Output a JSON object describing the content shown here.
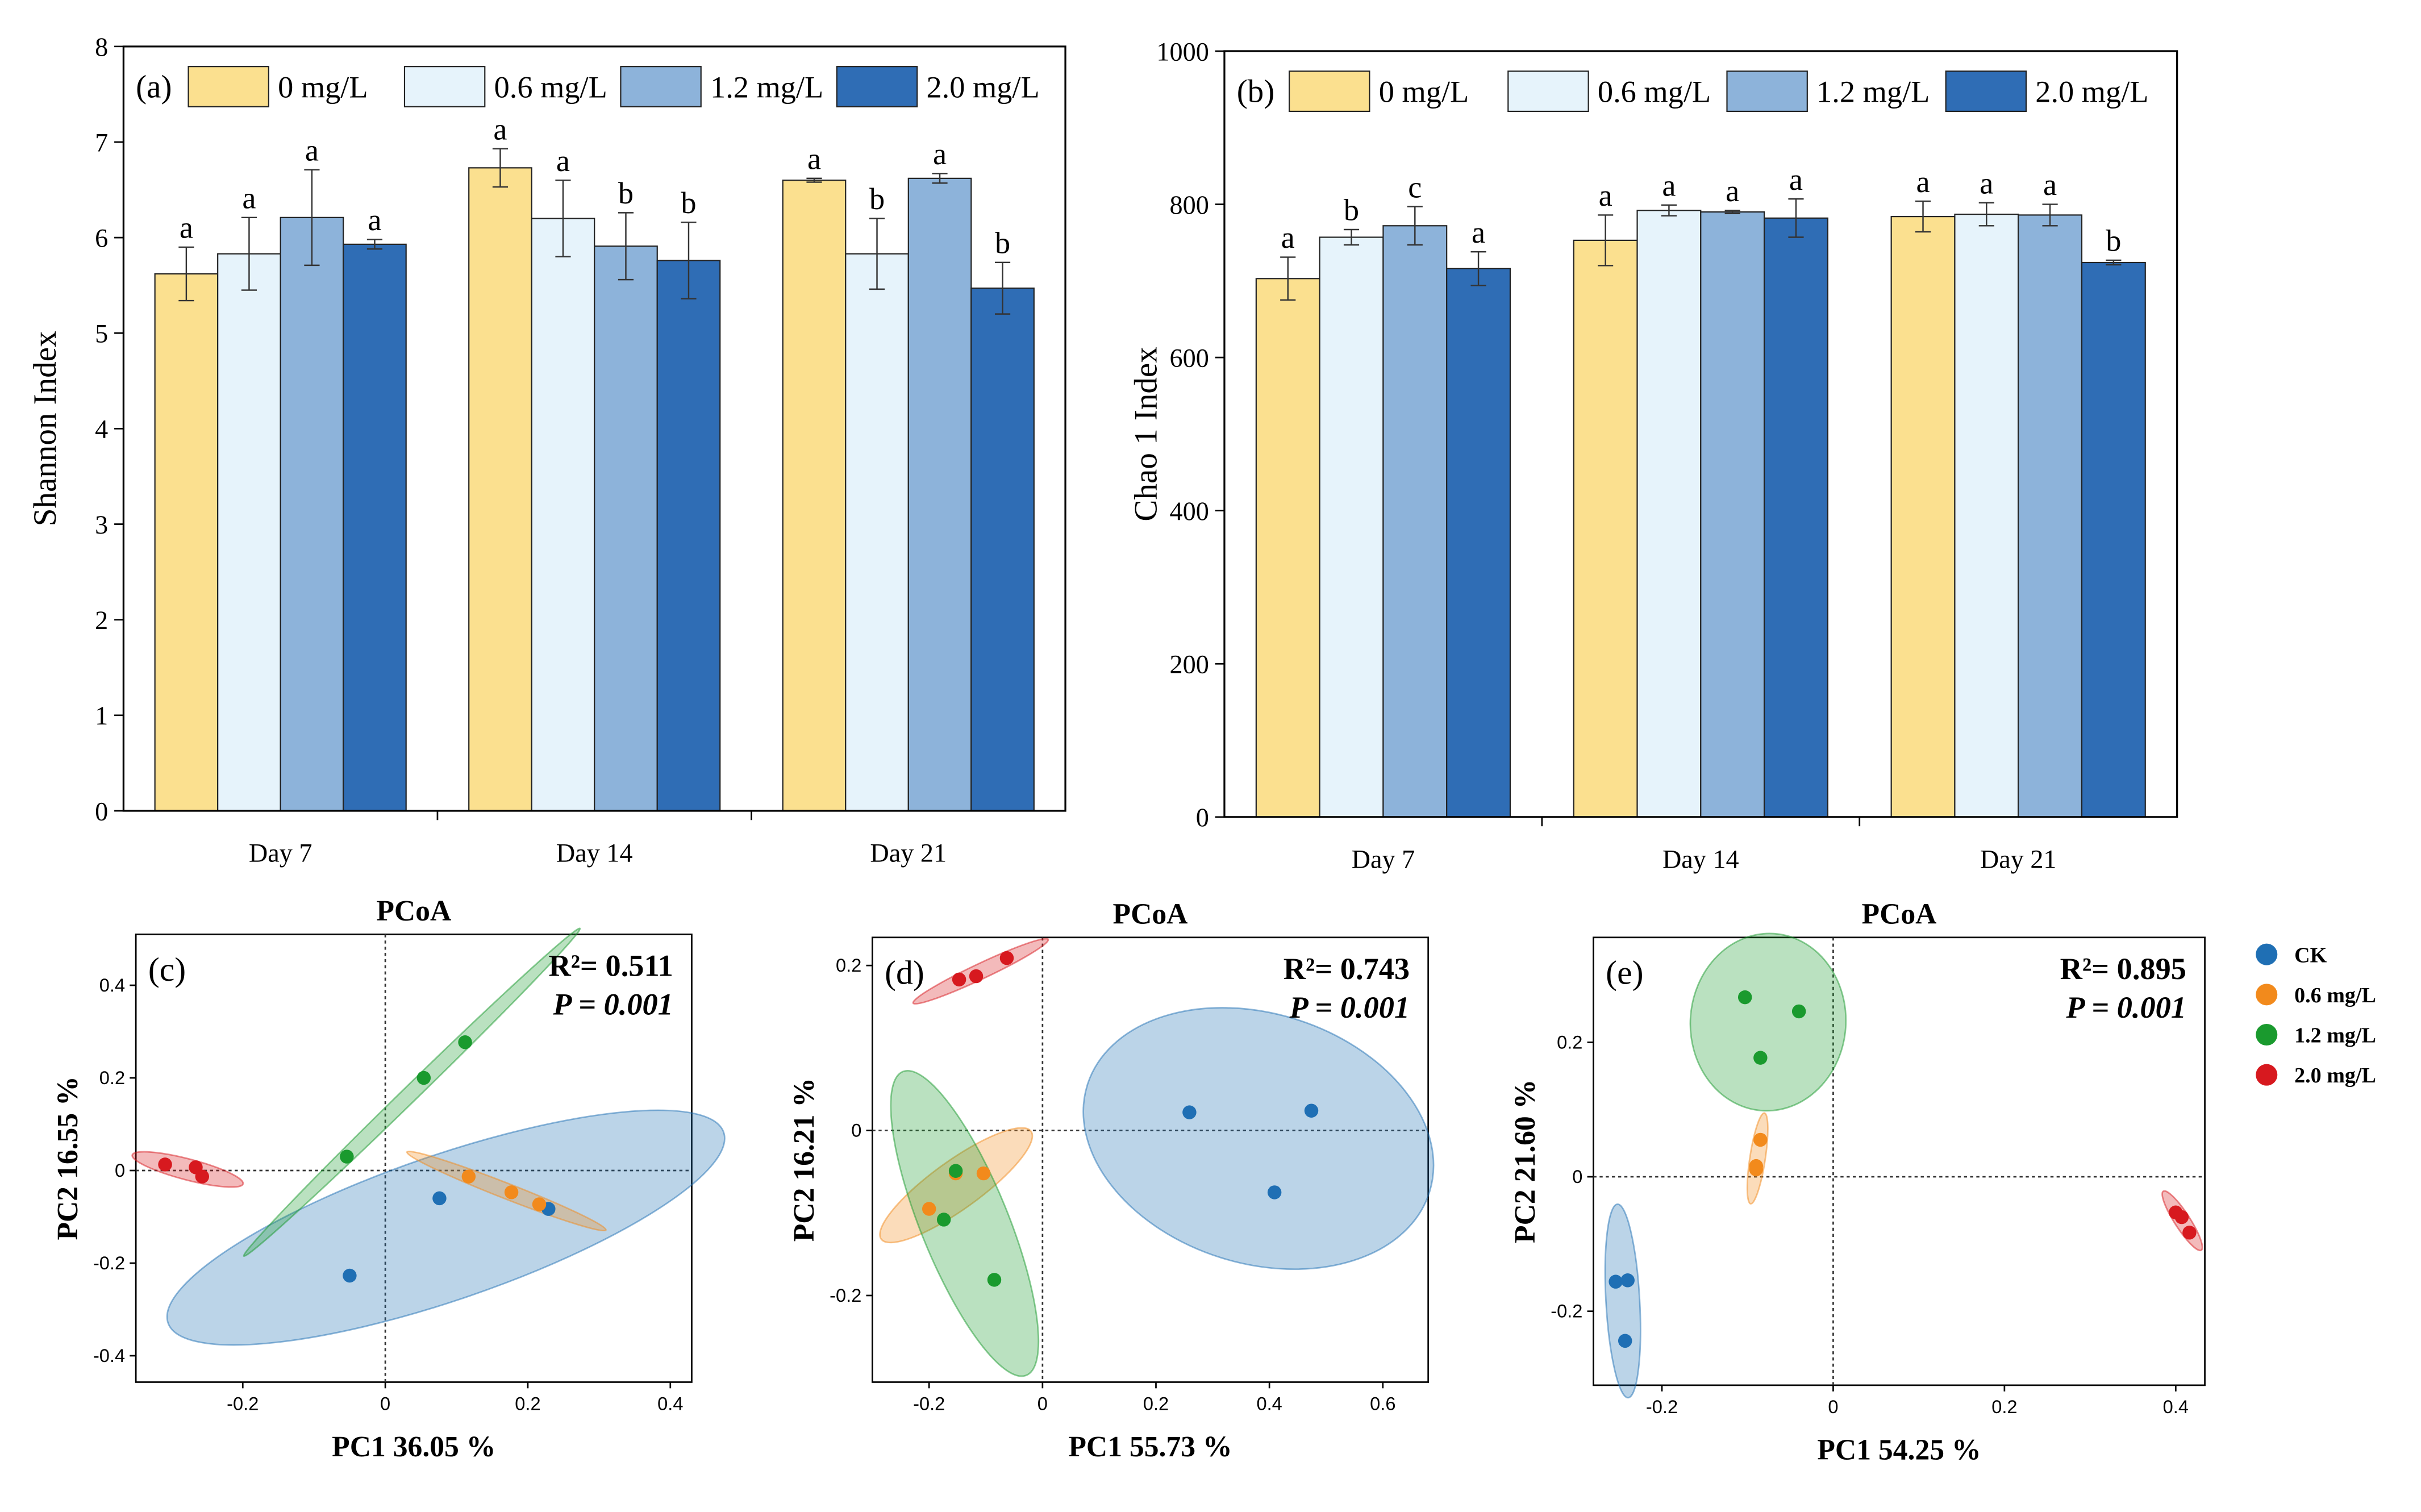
{
  "chart_data": [
    {
      "type": "bar",
      "panel_label": "(a)",
      "y_label": "Shannon Index",
      "categories": [
        "Day 7",
        "Day 14",
        "Day 21"
      ],
      "ylim": [
        0,
        8
      ],
      "yticks": [
        0,
        1,
        2,
        3,
        4,
        5,
        6,
        7,
        8
      ],
      "series": [
        {
          "name": "0 mg/L",
          "color": "#fbe08f",
          "values": [
            5.62,
            6.73,
            6.6
          ],
          "errors": [
            0.28,
            0.2,
            0.02
          ],
          "letters": [
            "a",
            "a",
            "a"
          ]
        },
        {
          "name": "0.6 mg/L",
          "color": "#e6f3fb",
          "values": [
            5.83,
            6.2,
            5.83
          ],
          "errors": [
            0.38,
            0.4,
            0.37
          ],
          "letters": [
            "a",
            "a",
            "b"
          ]
        },
        {
          "name": "1.2 mg/L",
          "color": "#8db3da",
          "values": [
            6.21,
            5.91,
            6.62
          ],
          "errors": [
            0.5,
            0.35,
            0.05
          ],
          "letters": [
            "a",
            "b",
            "a"
          ]
        },
        {
          "name": "2.0 mg/L",
          "color": "#2f6db5",
          "values": [
            5.93,
            5.76,
            5.47
          ],
          "errors": [
            0.05,
            0.4,
            0.27
          ],
          "letters": [
            "a",
            "b",
            "b"
          ]
        }
      ]
    },
    {
      "type": "bar",
      "panel_label": "(b)",
      "y_label": "Chao 1 Index",
      "categories": [
        "Day 7",
        "Day 14",
        "Day 21"
      ],
      "ylim": [
        0,
        1000
      ],
      "yticks": [
        0,
        200,
        400,
        600,
        800,
        1000
      ],
      "series": [
        {
          "name": "0 mg/L",
          "color": "#fbe08f",
          "values": [
            703,
            753,
            784
          ],
          "errors": [
            28,
            33,
            20
          ],
          "letters": [
            "a",
            "a",
            "a"
          ]
        },
        {
          "name": "0.6 mg/L",
          "color": "#e6f3fb",
          "values": [
            757,
            792,
            787
          ],
          "errors": [
            10,
            7,
            15
          ],
          "letters": [
            "b",
            "a",
            "a"
          ]
        },
        {
          "name": "1.2 mg/L",
          "color": "#8db3da",
          "values": [
            772,
            790,
            786
          ],
          "errors": [
            25,
            2,
            14
          ],
          "letters": [
            "c",
            "a",
            "a"
          ]
        },
        {
          "name": "2.0 mg/L",
          "color": "#2f6db5",
          "values": [
            716,
            782,
            724
          ],
          "errors": [
            22,
            25,
            3
          ],
          "letters": [
            "a",
            "a",
            "b"
          ]
        }
      ]
    },
    {
      "type": "scatter",
      "title": "PCoA",
      "panel_label": "(c)",
      "x_label": "PC1 36.05 %",
      "y_label": "PC2 16.55 %",
      "stat_r2": "R²= 0.511",
      "stat_p": "P = 0.001",
      "xlim": [
        -0.35,
        0.43
      ],
      "xticks": [
        -0.2,
        0,
        0.2,
        0.4
      ],
      "ylim": [
        -0.457,
        0.51
      ],
      "yticks": [
        -0.4,
        -0.2,
        0,
        0.2,
        0.4
      ],
      "series": [
        {
          "color": "#1f6fb4",
          "x": [
            0.076,
            -0.05,
            0.229
          ],
          "y": [
            -0.06,
            -0.227,
            -0.083
          ]
        },
        {
          "color": "#f28a1c",
          "x": [
            0.117,
            0.177,
            0.216
          ],
          "y": [
            -0.013,
            -0.047,
            -0.073
          ]
        },
        {
          "color": "#1a9a2e",
          "x": [
            -0.054,
            0.054,
            0.112
          ],
          "y": [
            0.03,
            0.2,
            0.277
          ]
        },
        {
          "color": "#d7191f",
          "x": [
            -0.309,
            -0.266,
            -0.257
          ],
          "y": [
            0.013,
            0.007,
            -0.013
          ]
        }
      ]
    },
    {
      "type": "scatter",
      "title": "PCoA",
      "panel_label": "(d)",
      "x_label": "PC1 55.73 %",
      "y_label": "PC2 16.21 %",
      "stat_r2": "R²= 0.743",
      "stat_p": "P = 0.001",
      "xlim": [
        -0.3,
        0.68
      ],
      "xticks": [
        -0.2,
        0,
        0.2,
        0.4,
        0.6
      ],
      "ylim": [
        -0.305,
        0.234
      ],
      "yticks": [
        -0.2,
        0,
        0.2
      ],
      "series": [
        {
          "color": "#1f6fb4",
          "x": [
            0.259,
            0.474,
            0.409
          ],
          "y": [
            0.022,
            0.024,
            -0.075
          ]
        },
        {
          "color": "#f28a1c",
          "x": [
            -0.2,
            -0.153,
            -0.104
          ],
          "y": [
            -0.095,
            -0.052,
            -0.052
          ]
        },
        {
          "color": "#1a9a2e",
          "x": [
            -0.153,
            -0.174,
            -0.085
          ],
          "y": [
            -0.049,
            -0.108,
            -0.181
          ]
        },
        {
          "color": "#d7191f",
          "x": [
            -0.147,
            -0.117,
            -0.063
          ],
          "y": [
            0.183,
            0.187,
            0.209
          ]
        }
      ]
    },
    {
      "type": "scatter",
      "title": "PCoA",
      "panel_label": "(e)",
      "x_label": "PC1 54.25 %",
      "y_label": "PC2 21.60 %",
      "stat_r2": "R²= 0.895",
      "stat_p": "P = 0.001",
      "xlim": [
        -0.28,
        0.434
      ],
      "xticks": [
        -0.2,
        0,
        0.2,
        0.4
      ],
      "ylim": [
        -0.31,
        0.356
      ],
      "yticks": [
        -0.2,
        0,
        0.2
      ],
      "series": [
        {
          "name": "CK",
          "color": "#1f6fb4",
          "x": [
            -0.254,
            -0.24,
            -0.243
          ],
          "y": [
            -0.156,
            -0.154,
            -0.244
          ]
        },
        {
          "name": "0.6 mg/L",
          "color": "#f28a1c",
          "x": [
            -0.085,
            -0.09,
            -0.09
          ],
          "y": [
            0.055,
            0.016,
            0.011
          ]
        },
        {
          "name": "1.2 mg/L",
          "color": "#1a9a2e",
          "x": [
            -0.103,
            -0.04,
            -0.085
          ],
          "y": [
            0.267,
            0.246,
            0.177
          ]
        },
        {
          "name": "2.0 mg/L",
          "color": "#d7191f",
          "x": [
            0.4,
            0.407,
            0.416
          ],
          "y": [
            -0.053,
            -0.06,
            -0.083
          ]
        }
      ]
    }
  ]
}
